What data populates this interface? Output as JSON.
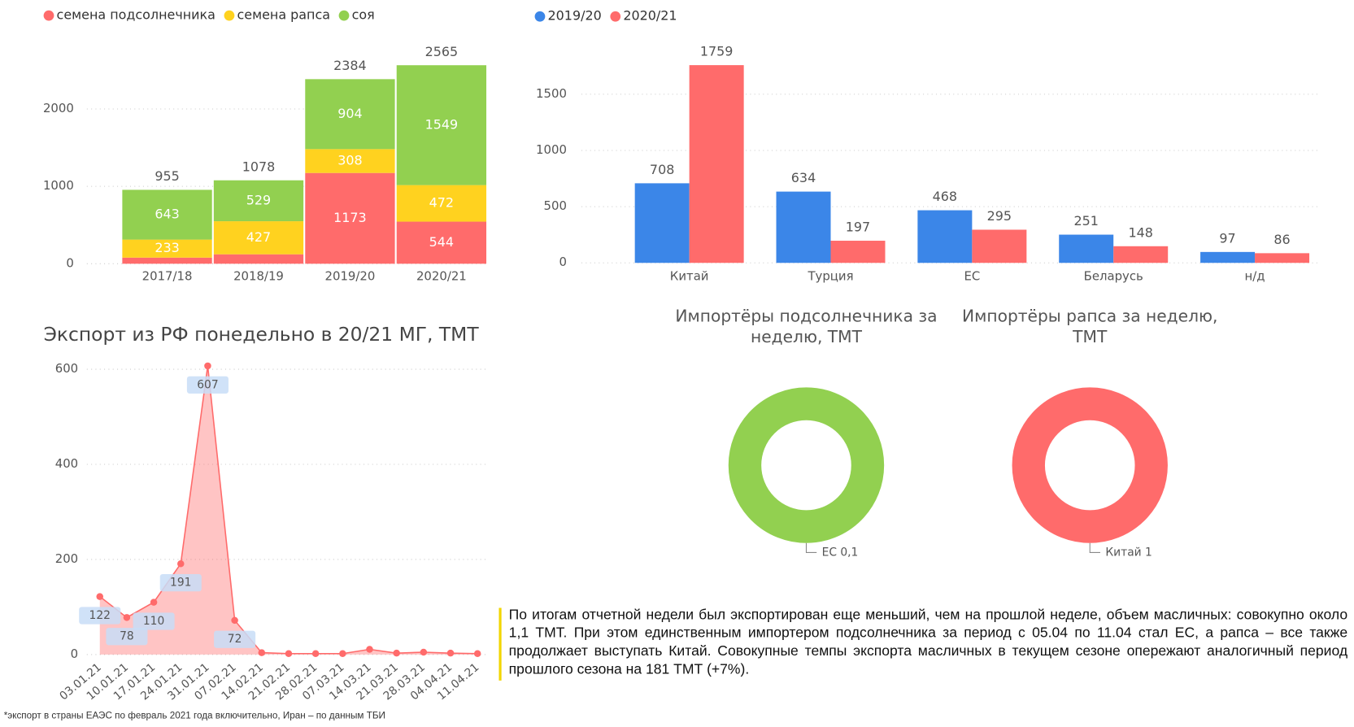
{
  "chart_data": [
    {
      "type": "stacked-bar",
      "categories": [
        "2017/18",
        "2018/19",
        "2019/20",
        "2020/21"
      ],
      "series": [
        {
          "name": "семена подсолнечника",
          "color": "#ff6b6b",
          "values": [
            79,
            122,
            1173,
            544
          ],
          "value_labels": [
            null,
            null,
            "1173",
            "544"
          ]
        },
        {
          "name": "семена рапса",
          "color": "#ffd21f",
          "values": [
            233,
            427,
            308,
            472
          ]
        },
        {
          "name": "соя",
          "color": "#92d050",
          "values": [
            643,
            529,
            904,
            1549
          ]
        }
      ],
      "totals": [
        955,
        1078,
        2384,
        2565
      ],
      "ylim": [
        0,
        2800
      ],
      "yticks": [
        0,
        1000,
        2000
      ],
      "grid": true,
      "legend": "top-left"
    },
    {
      "type": "grouped-bar",
      "categories": [
        "Китай",
        "Турция",
        "ЕС",
        "Беларусь",
        "н/д"
      ],
      "series": [
        {
          "name": "2019/20",
          "color": "#3b86e8",
          "values": [
            708,
            634,
            468,
            251,
            97
          ]
        },
        {
          "name": "2020/21",
          "color": "#ff6b6b",
          "values": [
            1759,
            197,
            295,
            148,
            86
          ]
        }
      ],
      "ylim": [
        0,
        1900
      ],
      "yticks": [
        0,
        500,
        1000,
        1500
      ],
      "grid": true,
      "legend": "top-left"
    },
    {
      "type": "area",
      "title": "Экспорт из РФ понедельно в 20/21 МГ, ТМТ",
      "categories": [
        "03.01.21",
        "10.01.21",
        "17.01.21",
        "24.01.21",
        "31.01.21",
        "07.02.21",
        "14.02.21",
        "21.02.21",
        "28.02.21",
        "07.03.21",
        "14.03.21",
        "21.03.21",
        "28.03.21",
        "04.04.21",
        "11.04.21"
      ],
      "values": [
        122,
        78,
        110,
        191,
        607,
        72,
        4,
        2,
        2,
        2,
        11,
        3,
        5,
        3,
        2
      ],
      "value_labels": [
        "122",
        "78",
        "110",
        "191",
        "607",
        "72",
        null,
        null,
        null,
        null,
        null,
        null,
        null,
        null,
        null
      ],
      "color": "#ff6b6b",
      "ylim": [
        0,
        620
      ],
      "yticks": [
        0,
        200,
        400,
        600
      ],
      "grid": true
    },
    {
      "type": "donut",
      "title": "Импортёры подсолнечника за неделю, ТМТ",
      "categories": [
        "ЕС"
      ],
      "values": [
        0.1
      ],
      "value_labels": [
        "0,1"
      ],
      "color": "#92d050"
    },
    {
      "type": "donut",
      "title": "Импортёры рапса за неделю, ТМТ",
      "categories": [
        "Китай"
      ],
      "values": [
        1
      ],
      "color": "#ff6b6b"
    }
  ],
  "text": {
    "paragraph": "По итогам отчетной недели был экспортирован еще меньший, чем на прошлой неделе, объем масличных: совокупно около 1,1 ТМТ. При этом единственным импортером подсолнечника за период с 05.04 по 11.04 стал ЕС, а рапса – все также продолжает выступать Китай. Совокупные темпы экспорта масличных в текущем сезоне опережают аналогичный период прошлого сезона на 181 ТМТ (+7%).",
    "footnote": "*экспорт в страны ЕАЭС по февраль 2021 года включительно, Иран – по данным ТБИ"
  }
}
